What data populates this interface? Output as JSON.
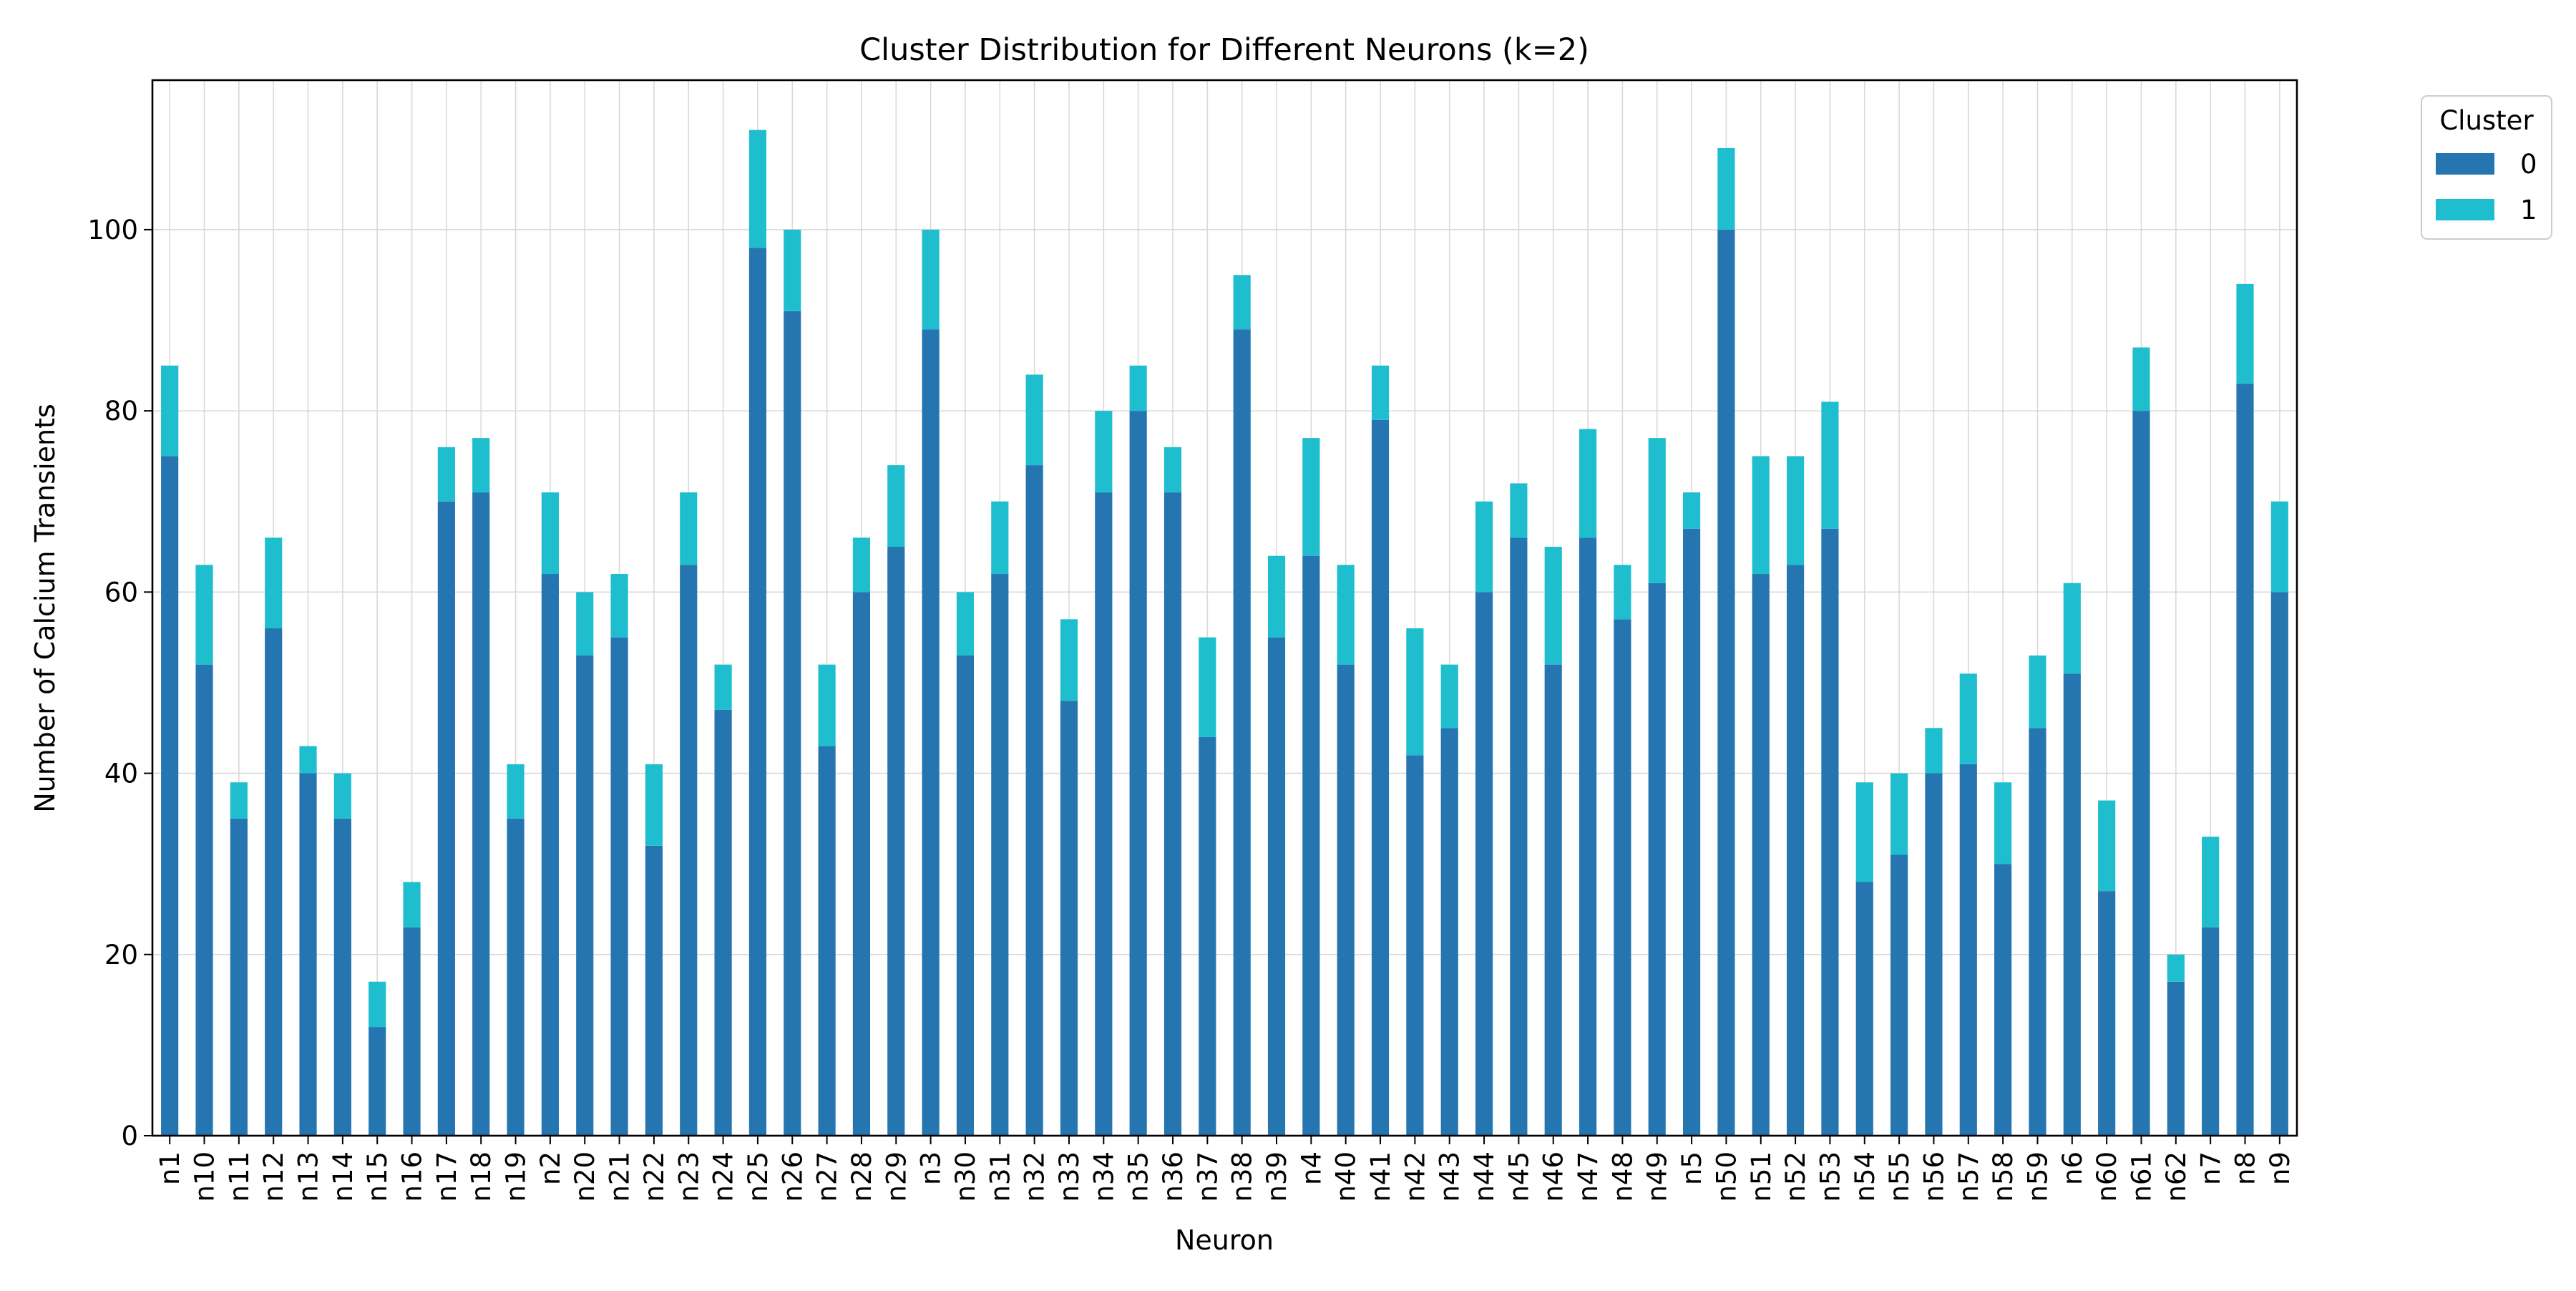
{
  "chart_data": {
    "type": "bar",
    "stacked": true,
    "title": "Cluster Distribution for Different Neurons (k=2)",
    "xlabel": "Neuron",
    "ylabel": "Number of Calcium Transients",
    "ylim": [
      0,
      116.5
    ],
    "yticks": [
      0,
      20,
      40,
      60,
      80,
      100
    ],
    "grid": true,
    "legend": {
      "title": "Cluster",
      "placement": "outside-top-right"
    },
    "colors": {
      "0": "#2575b0",
      "1": "#1fbecf"
    },
    "categories": [
      "n1",
      "n10",
      "n11",
      "n12",
      "n13",
      "n14",
      "n15",
      "n16",
      "n17",
      "n18",
      "n19",
      "n2",
      "n20",
      "n21",
      "n22",
      "n23",
      "n24",
      "n25",
      "n26",
      "n27",
      "n28",
      "n29",
      "n3",
      "n30",
      "n31",
      "n32",
      "n33",
      "n34",
      "n35",
      "n36",
      "n37",
      "n38",
      "n39",
      "n4",
      "n40",
      "n41",
      "n42",
      "n43",
      "n44",
      "n45",
      "n46",
      "n47",
      "n48",
      "n49",
      "n5",
      "n50",
      "n51",
      "n52",
      "n53",
      "n54",
      "n55",
      "n56",
      "n57",
      "n58",
      "n59",
      "n6",
      "n60",
      "n61",
      "n62",
      "n7",
      "n8",
      "n9"
    ],
    "series": [
      {
        "name": "0",
        "values": [
          75,
          52,
          35,
          56,
          40,
          35,
          12,
          23,
          70,
          71,
          35,
          62,
          53,
          55,
          32,
          63,
          47,
          98,
          91,
          43,
          60,
          65,
          89,
          53,
          62,
          74,
          48,
          71,
          80,
          71,
          44,
          89,
          55,
          64,
          52,
          79,
          42,
          45,
          60,
          66,
          52,
          66,
          57,
          61,
          67,
          100,
          62,
          63,
          67,
          28,
          31,
          40,
          41,
          30,
          45,
          51,
          27,
          80,
          17,
          23,
          83,
          60
        ]
      },
      {
        "name": "1",
        "values": [
          10,
          11,
          4,
          10,
          3,
          5,
          5,
          5,
          6,
          6,
          6,
          9,
          7,
          7,
          9,
          8,
          5,
          13,
          9,
          9,
          6,
          9,
          11,
          7,
          8,
          10,
          9,
          9,
          5,
          5,
          11,
          6,
          9,
          13,
          11,
          6,
          14,
          7,
          10,
          6,
          13,
          12,
          6,
          16,
          4,
          9,
          13,
          12,
          14,
          11,
          9,
          5,
          10,
          9,
          8,
          10,
          10,
          7,
          3,
          10,
          11,
          10
        ]
      }
    ]
  }
}
